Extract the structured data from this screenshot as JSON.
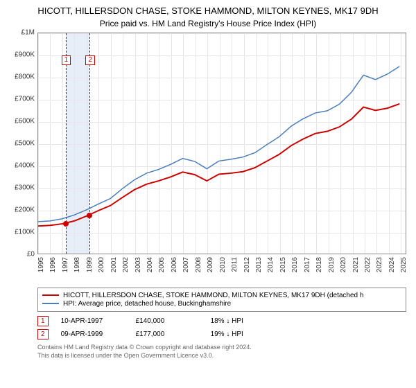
{
  "title": "HICOTT, HILLERSDON CHASE, STOKE HAMMOND, MILTON KEYNES, MK17 9DH",
  "subtitle": "Price paid vs. HM Land Registry's House Price Index (HPI)",
  "chart": {
    "type": "line",
    "background_color": "#ffffff",
    "grid_color": "#e6e6e6",
    "axis_color": "#888888",
    "x": {
      "min": 1995,
      "max": 2025.5,
      "ticks": [
        1995,
        1996,
        1997,
        1998,
        1999,
        2000,
        2001,
        2002,
        2003,
        2004,
        2005,
        2006,
        2007,
        2008,
        2009,
        2010,
        2011,
        2012,
        2013,
        2014,
        2015,
        2016,
        2017,
        2018,
        2019,
        2020,
        2021,
        2022,
        2023,
        2024,
        2025
      ]
    },
    "y": {
      "min": 0,
      "max": 1000000,
      "ticks": [
        0,
        100000,
        200000,
        300000,
        400000,
        500000,
        600000,
        700000,
        800000,
        900000,
        1000000
      ],
      "tick_labels": [
        "£0",
        "£100K",
        "£200K",
        "£300K",
        "£400K",
        "£500K",
        "£600K",
        "£700K",
        "£800K",
        "£900K",
        "£1M"
      ]
    },
    "band": {
      "from": 1997.27,
      "to": 1999.27,
      "color": "#e8eef7"
    },
    "markers": [
      {
        "id": "1",
        "x": 1997.27,
        "y": 140000,
        "label_y": 900000
      },
      {
        "id": "2",
        "x": 1999.27,
        "y": 177000,
        "label_y": 900000
      }
    ],
    "series": [
      {
        "name": "property",
        "color": "#cc0000",
        "width": 2,
        "label": "HICOTT, HILLERSDON CHASE, STOKE HAMMOND, MILTON KEYNES, MK17 9DH (detached h",
        "points": [
          [
            1995,
            125000
          ],
          [
            1996,
            128000
          ],
          [
            1997,
            135000
          ],
          [
            1998,
            148000
          ],
          [
            1999,
            170000
          ],
          [
            2000,
            195000
          ],
          [
            2001,
            218000
          ],
          [
            2002,
            255000
          ],
          [
            2003,
            290000
          ],
          [
            2004,
            315000
          ],
          [
            2005,
            330000
          ],
          [
            2006,
            348000
          ],
          [
            2007,
            370000
          ],
          [
            2008,
            358000
          ],
          [
            2009,
            330000
          ],
          [
            2010,
            360000
          ],
          [
            2011,
            365000
          ],
          [
            2012,
            372000
          ],
          [
            2013,
            390000
          ],
          [
            2014,
            420000
          ],
          [
            2015,
            450000
          ],
          [
            2016,
            490000
          ],
          [
            2017,
            520000
          ],
          [
            2018,
            545000
          ],
          [
            2019,
            555000
          ],
          [
            2020,
            575000
          ],
          [
            2021,
            610000
          ],
          [
            2022,
            665000
          ],
          [
            2023,
            650000
          ],
          [
            2024,
            660000
          ],
          [
            2025,
            680000
          ]
        ]
      },
      {
        "name": "hpi",
        "color": "#4a7ebb",
        "width": 1.5,
        "label": "HPI: Average price, detached house, Buckinghamshire",
        "points": [
          [
            1995,
            145000
          ],
          [
            1996,
            148000
          ],
          [
            1997,
            158000
          ],
          [
            1998,
            175000
          ],
          [
            1999,
            198000
          ],
          [
            2000,
            225000
          ],
          [
            2001,
            250000
          ],
          [
            2002,
            295000
          ],
          [
            2003,
            335000
          ],
          [
            2004,
            365000
          ],
          [
            2005,
            382000
          ],
          [
            2006,
            405000
          ],
          [
            2007,
            432000
          ],
          [
            2008,
            418000
          ],
          [
            2009,
            385000
          ],
          [
            2010,
            420000
          ],
          [
            2011,
            428000
          ],
          [
            2012,
            438000
          ],
          [
            2013,
            458000
          ],
          [
            2014,
            495000
          ],
          [
            2015,
            530000
          ],
          [
            2016,
            578000
          ],
          [
            2017,
            612000
          ],
          [
            2018,
            638000
          ],
          [
            2019,
            648000
          ],
          [
            2020,
            678000
          ],
          [
            2021,
            732000
          ],
          [
            2022,
            810000
          ],
          [
            2023,
            790000
          ],
          [
            2024,
            815000
          ],
          [
            2025,
            850000
          ]
        ]
      }
    ],
    "marker_dot_color": "#cc0000"
  },
  "legend": {
    "series": [
      {
        "color": "#cc0000",
        "label": "HICOTT, HILLERSDON CHASE, STOKE HAMMOND, MILTON KEYNES, MK17 9DH (detached h"
      },
      {
        "color": "#4a7ebb",
        "label": "HPI: Average price, detached house, Buckinghamshire"
      }
    ]
  },
  "marker_table": [
    {
      "id": "1",
      "date": "10-APR-1997",
      "price": "£140,000",
      "delta": "18% ↓ HPI"
    },
    {
      "id": "2",
      "date": "09-APR-1999",
      "price": "£177,000",
      "delta": "19% ↓ HPI"
    }
  ],
  "footnote_line1": "Contains HM Land Registry data © Crown copyright and database right 2024.",
  "footnote_line2": "This data is licensed under the Open Government Licence v3.0."
}
